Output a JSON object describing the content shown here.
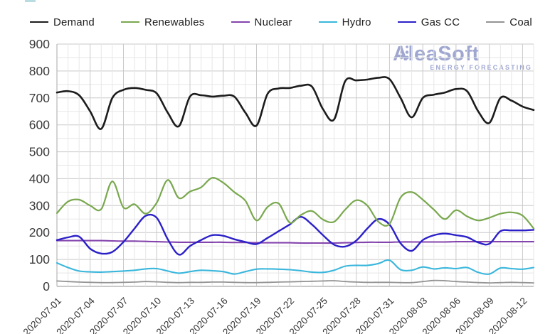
{
  "logo": {
    "title": "AleaSoft",
    "subtitle": "ENERGY FORECASTING",
    "color": "#97a0ce"
  },
  "legend": {
    "note": "labels bound from chart_data.series names"
  },
  "axes": {
    "y_tick_color": "#3c3c3c",
    "x_tick_color": "#333333",
    "grid_major_color": "#c9c9c9",
    "grid_minor_color": "#e7e7e7",
    "axis_line_color": "#a9a9a9"
  },
  "chart_data": {
    "type": "line",
    "title": "",
    "xlabel": "",
    "ylabel": "",
    "ylim": [
      0,
      900
    ],
    "y_ticks": [
      0,
      100,
      200,
      300,
      400,
      500,
      600,
      700,
      800,
      900
    ],
    "grid": true,
    "legend_position": "top",
    "x": [
      "2020-07-01",
      "2020-07-02",
      "2020-07-03",
      "2020-07-04",
      "2020-07-05",
      "2020-07-06",
      "2020-07-07",
      "2020-07-08",
      "2020-07-09",
      "2020-07-10",
      "2020-07-11",
      "2020-07-12",
      "2020-07-13",
      "2020-07-14",
      "2020-07-15",
      "2020-07-16",
      "2020-07-17",
      "2020-07-18",
      "2020-07-19",
      "2020-07-20",
      "2020-07-21",
      "2020-07-22",
      "2020-07-23",
      "2020-07-24",
      "2020-07-25",
      "2020-07-26",
      "2020-07-27",
      "2020-07-28",
      "2020-07-29",
      "2020-07-30",
      "2020-07-31",
      "2020-08-01",
      "2020-08-02",
      "2020-08-03",
      "2020-08-04",
      "2020-08-05",
      "2020-08-06",
      "2020-08-07",
      "2020-08-08",
      "2020-08-09",
      "2020-08-10",
      "2020-08-11",
      "2020-08-12",
      "2020-08-13"
    ],
    "x_tick_labels": [
      "2020-07-01",
      "2020-07-04",
      "2020-07-07",
      "2020-07-10",
      "2020-07-13",
      "2020-07-16",
      "2020-07-19",
      "2020-07-22",
      "2020-07-25",
      "2020-07-28",
      "2020-07-31",
      "2020-08-03",
      "2020-08-06",
      "2020-08-09",
      "2020-08-12"
    ],
    "x_tick_step": 3,
    "series": [
      {
        "name": "Demand",
        "color": "#1c1c1c",
        "width": 2.6,
        "values": [
          720,
          725,
          710,
          650,
          585,
          700,
          730,
          737,
          730,
          717,
          645,
          595,
          705,
          710,
          705,
          708,
          705,
          645,
          597,
          715,
          735,
          737,
          745,
          742,
          658,
          620,
          762,
          765,
          768,
          775,
          770,
          700,
          628,
          700,
          712,
          720,
          733,
          725,
          650,
          607,
          700,
          690,
          668,
          655
        ]
      },
      {
        "name": "Renewables",
        "color": "#79a84e",
        "width": 2.2,
        "values": [
          272,
          315,
          322,
          300,
          287,
          390,
          293,
          305,
          270,
          310,
          395,
          328,
          352,
          368,
          403,
          385,
          350,
          318,
          245,
          295,
          308,
          237,
          265,
          280,
          248,
          240,
          285,
          320,
          300,
          240,
          232,
          330,
          350,
          322,
          285,
          250,
          283,
          260,
          245,
          255,
          270,
          275,
          263,
          215
        ]
      },
      {
        "name": "Nuclear",
        "color": "#8444ad",
        "width": 2.1,
        "values": [
          170,
          170,
          170,
          170,
          170,
          169,
          168,
          168,
          167,
          166,
          165,
          164,
          164,
          164,
          164,
          164,
          163,
          163,
          162,
          162,
          162,
          162,
          161,
          161,
          161,
          161,
          162,
          163,
          164,
          164,
          164,
          165,
          165,
          165,
          165,
          165,
          166,
          166,
          166,
          166,
          166,
          166,
          166,
          166
        ]
      },
      {
        "name": "Hydro",
        "color": "#3ab7dc",
        "width": 2.1,
        "values": [
          87,
          70,
          57,
          54,
          53,
          55,
          57,
          60,
          65,
          66,
          57,
          49,
          55,
          60,
          58,
          55,
          46,
          55,
          64,
          65,
          64,
          62,
          58,
          53,
          52,
          60,
          75,
          78,
          78,
          85,
          97,
          62,
          60,
          72,
          65,
          69,
          66,
          70,
          52,
          46,
          68,
          66,
          64,
          70
        ]
      },
      {
        "name": "Gas CC",
        "color": "#2b20c8",
        "width": 2.4,
        "values": [
          172,
          182,
          185,
          140,
          122,
          128,
          165,
          215,
          262,
          255,
          175,
          118,
          150,
          172,
          190,
          188,
          175,
          165,
          157,
          180,
          205,
          230,
          258,
          230,
          190,
          155,
          148,
          170,
          215,
          250,
          230,
          160,
          132,
          172,
          190,
          196,
          190,
          183,
          163,
          158,
          205,
          208,
          208,
          210
        ]
      },
      {
        "name": "Coal",
        "color": "#949494",
        "width": 1.8,
        "values": [
          20,
          18,
          16,
          15,
          14,
          14,
          15,
          16,
          18,
          17,
          15,
          14,
          15,
          15,
          16,
          16,
          15,
          14,
          14,
          15,
          16,
          17,
          18,
          19,
          20,
          21,
          18,
          16,
          15,
          15,
          15,
          14,
          14,
          18,
          22,
          21,
          18,
          16,
          14,
          13,
          14,
          15,
          14,
          13
        ]
      }
    ]
  }
}
